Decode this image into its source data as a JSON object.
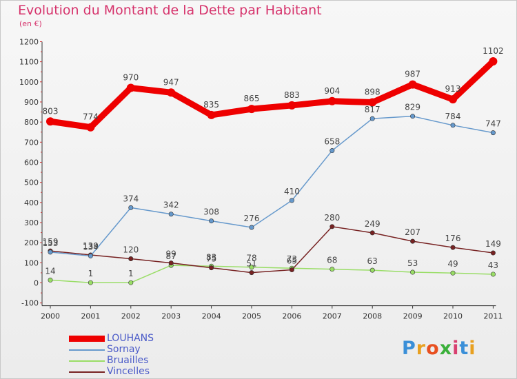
{
  "page": {
    "title": "Evolution du Montant de la Dette par Habitant",
    "subtitle": "(en €)",
    "logo": "Proxiti"
  },
  "chart_data": {
    "type": "line",
    "title": "Evolution du Montant de la Dette par Habitant",
    "subtitle": "(en €)",
    "ylim": [
      -100,
      1200
    ],
    "yticks": [
      -100,
      0,
      100,
      200,
      300,
      400,
      500,
      600,
      700,
      800,
      900,
      1000,
      1100,
      1200
    ],
    "categories": [
      "2000",
      "2001",
      "2002",
      "2003",
      "2004",
      "2005",
      "2006",
      "2007",
      "2008",
      "2009",
      "2010",
      "2011"
    ],
    "grid": false,
    "legend_position": "bottom-left",
    "series": [
      {
        "name": "LOUHANS",
        "color": "#ee0000",
        "values": [
          803,
          774,
          970,
          947,
          835,
          865,
          883,
          904,
          898,
          987,
          913,
          1102
        ]
      },
      {
        "name": "Sornay",
        "color": "#6699cc",
        "values": [
          153,
          134,
          374,
          342,
          308,
          276,
          410,
          658,
          817,
          829,
          784,
          747
        ]
      },
      {
        "name": "Bruailles",
        "color": "#99dd66",
        "values": [
          14,
          1,
          1,
          87,
          83,
          78,
          73,
          68,
          63,
          53,
          49,
          43
        ]
      },
      {
        "name": "Vincelles",
        "color": "#772222",
        "values": [
          159,
          139,
          120,
          99,
          75,
          51,
          65,
          280,
          249,
          207,
          176,
          149
        ]
      }
    ]
  }
}
